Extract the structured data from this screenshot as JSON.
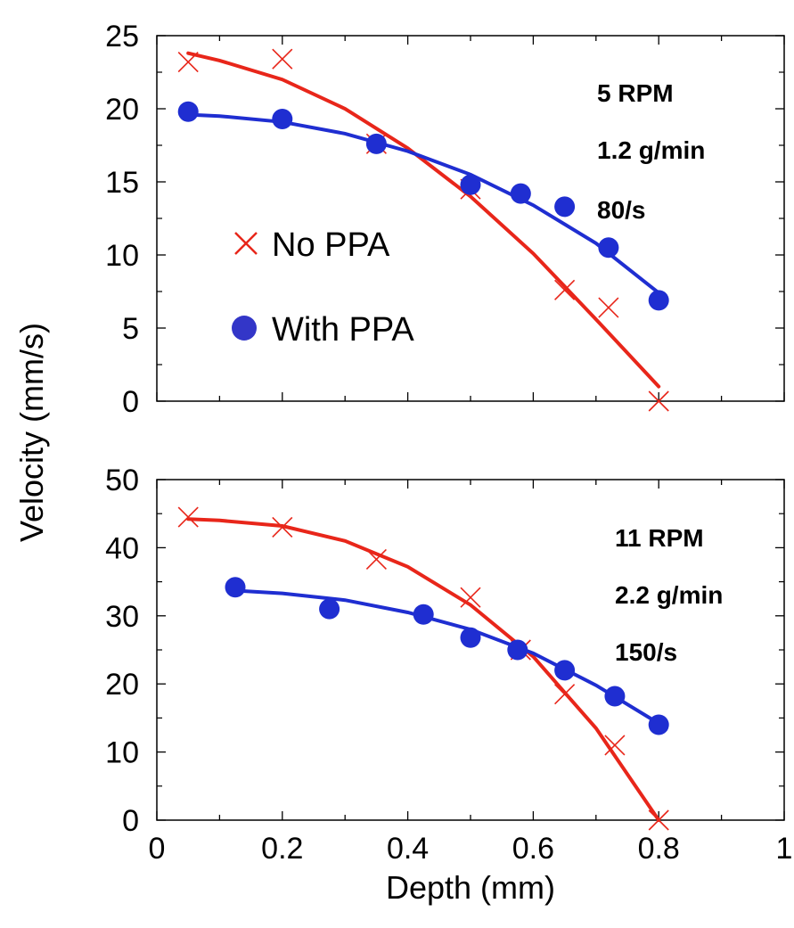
{
  "colors": {
    "no_ppa": "#e8261a",
    "with_ppa": "#1f2ed1",
    "legend_dot": "#3336c8"
  },
  "legend": {
    "no_ppa_label": "No PPA",
    "with_ppa_label": "With PPA",
    "placement": "left, inside top panel"
  },
  "axes": {
    "xlabel": "Depth (mm)",
    "ylabel": "Velocity (mm/s)",
    "x_tick_labels": [
      "0",
      "0.2",
      "0.4",
      "0.6",
      "0.8",
      "1"
    ]
  },
  "chart_data": [
    {
      "type": "scatter",
      "panel": "top",
      "xlim": [
        0,
        1
      ],
      "ylim": [
        0,
        25
      ],
      "y_ticks": [
        0,
        5,
        10,
        15,
        20,
        25
      ],
      "y_tick_labels": [
        "0",
        "5",
        "10",
        "15",
        "20",
        "25"
      ],
      "annotations": [
        "5 RPM",
        "1.2 g/min",
        "80/s"
      ],
      "series": [
        {
          "key": "no_ppa",
          "marker": "x",
          "points": [
            [
              0.05,
              23.2
            ],
            [
              0.2,
              23.4
            ],
            [
              0.35,
              17.6
            ],
            [
              0.5,
              14.5
            ],
            [
              0.65,
              7.6
            ],
            [
              0.72,
              6.4
            ],
            [
              0.8,
              0.0
            ]
          ],
          "fit": [
            [
              0.05,
              23.8
            ],
            [
              0.1,
              23.3
            ],
            [
              0.2,
              22.0
            ],
            [
              0.3,
              20.0
            ],
            [
              0.4,
              17.3
            ],
            [
              0.5,
              14.0
            ],
            [
              0.6,
              10.1
            ],
            [
              0.7,
              5.6
            ],
            [
              0.8,
              1.0
            ]
          ]
        },
        {
          "key": "with_ppa",
          "marker": "circle",
          "points": [
            [
              0.05,
              19.8
            ],
            [
              0.2,
              19.3
            ],
            [
              0.35,
              17.6
            ],
            [
              0.5,
              14.8
            ],
            [
              0.58,
              14.2
            ],
            [
              0.65,
              13.3
            ],
            [
              0.72,
              10.5
            ],
            [
              0.8,
              6.9
            ]
          ],
          "fit": [
            [
              0.05,
              19.6
            ],
            [
              0.1,
              19.5
            ],
            [
              0.2,
              19.1
            ],
            [
              0.3,
              18.3
            ],
            [
              0.4,
              17.1
            ],
            [
              0.5,
              15.5
            ],
            [
              0.6,
              13.4
            ],
            [
              0.7,
              10.8
            ],
            [
              0.8,
              7.4
            ]
          ]
        }
      ]
    },
    {
      "type": "scatter",
      "panel": "bottom",
      "xlim": [
        0,
        1
      ],
      "ylim": [
        0,
        50
      ],
      "y_ticks": [
        0,
        10,
        20,
        30,
        40,
        50
      ],
      "y_tick_labels": [
        "0",
        "10",
        "20",
        "30",
        "40",
        "50"
      ],
      "annotations": [
        "11 RPM",
        "2.2 g/min",
        "150/s"
      ],
      "series": [
        {
          "key": "no_ppa",
          "marker": "x",
          "points": [
            [
              0.05,
              44.5
            ],
            [
              0.2,
              43.0
            ],
            [
              0.35,
              38.3
            ],
            [
              0.5,
              32.7
            ],
            [
              0.58,
              25.0
            ],
            [
              0.65,
              18.5
            ],
            [
              0.73,
              11.0
            ],
            [
              0.8,
              0.0
            ]
          ],
          "fit": [
            [
              0.05,
              44.2
            ],
            [
              0.1,
              44.0
            ],
            [
              0.2,
              43.2
            ],
            [
              0.3,
              41.0
            ],
            [
              0.4,
              37.2
            ],
            [
              0.5,
              31.6
            ],
            [
              0.6,
              24.0
            ],
            [
              0.7,
              13.5
            ],
            [
              0.8,
              0.0
            ]
          ]
        },
        {
          "key": "with_ppa",
          "marker": "circle",
          "points": [
            [
              0.125,
              34.2
            ],
            [
              0.275,
              31.0
            ],
            [
              0.425,
              30.2
            ],
            [
              0.5,
              26.8
            ],
            [
              0.575,
              25.0
            ],
            [
              0.65,
              22.0
            ],
            [
              0.73,
              18.2
            ],
            [
              0.8,
              14.0
            ]
          ],
          "fit": [
            [
              0.125,
              33.7
            ],
            [
              0.2,
              33.3
            ],
            [
              0.3,
              32.3
            ],
            [
              0.4,
              30.5
            ],
            [
              0.5,
              28.0
            ],
            [
              0.6,
              24.5
            ],
            [
              0.7,
              19.8
            ],
            [
              0.8,
              14.2
            ]
          ]
        }
      ]
    }
  ]
}
